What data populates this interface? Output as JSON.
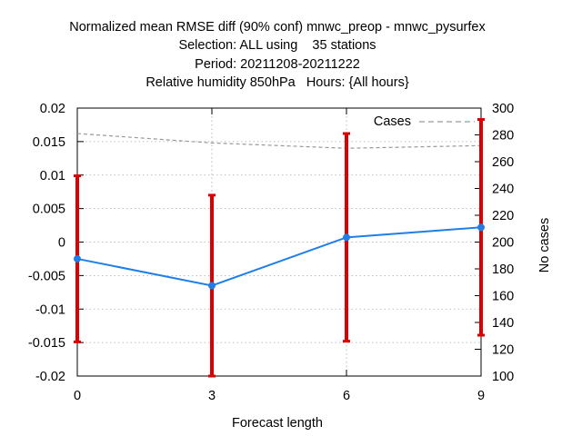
{
  "chart_data": {
    "type": "line",
    "title_lines": [
      "Normalized mean RMSE diff (90% conf) mnwc_preop - mnwc_pysurfex",
      "Selection: ALL using    35 stations",
      "Period: 20211208-20211222",
      "Relative humidity 850hPa   Hours: {All hours}"
    ],
    "xlabel": "Forecast length",
    "ylabel": "",
    "y2label": "No cases",
    "x": [
      0,
      3,
      6,
      9
    ],
    "xlim": [
      0,
      9
    ],
    "ylim": [
      -0.02,
      0.02
    ],
    "y2lim": [
      100,
      300
    ],
    "x_ticks": [
      0,
      3,
      6,
      9
    ],
    "x_tick_labels": [
      "0",
      "3",
      "6",
      "9"
    ],
    "y_ticks": [
      -0.02,
      -0.015,
      -0.01,
      -0.005,
      0,
      0.005,
      0.01,
      0.015,
      0.02
    ],
    "y_tick_labels": [
      "-0.02",
      "-0.015",
      "-0.01",
      "-0.005",
      "0",
      "0.005",
      "0.01",
      "0.015",
      "0.02"
    ],
    "y2_ticks": [
      100,
      120,
      140,
      160,
      180,
      200,
      220,
      240,
      260,
      280,
      300
    ],
    "y2_tick_labels": [
      "100",
      "120",
      "140",
      "160",
      "180",
      "200",
      "220",
      "240",
      "260",
      "280",
      "300"
    ],
    "grid": true,
    "legend_position": "top-right",
    "series": [
      {
        "values": [
          -0.0025,
          -0.0065,
          0.0007,
          0.0022
        ],
        "lower": [
          -0.0149,
          -0.02,
          -0.0148,
          -0.0139
        ],
        "upper": [
          0.0099,
          0.007,
          0.0162,
          0.0183
        ],
        "color": "#1f7fe6",
        "errorbar_color": "#dd0000"
      },
      {
        "name": "Cases",
        "axis": "y2",
        "values": [
          281,
          274,
          270,
          272
        ],
        "color": "#999999",
        "style": "dashed"
      }
    ]
  }
}
